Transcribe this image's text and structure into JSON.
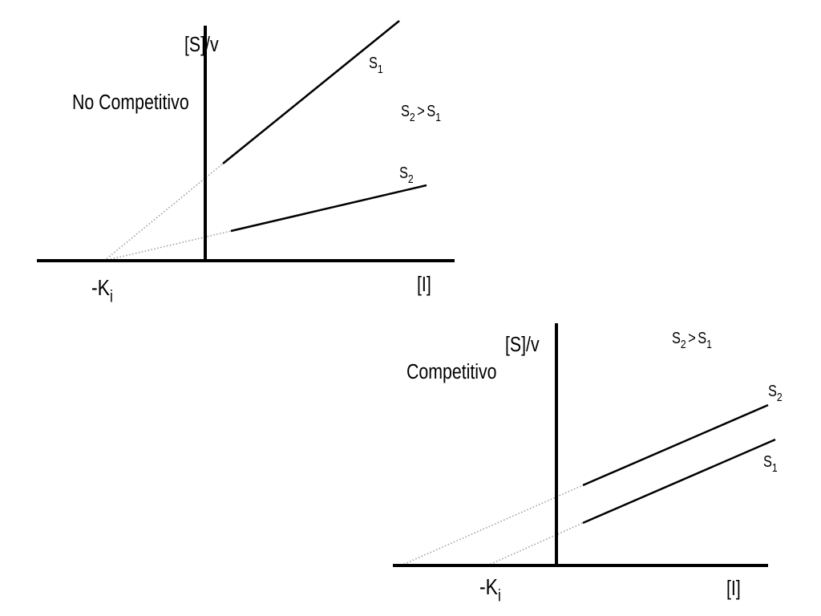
{
  "diagrams": [
    {
      "title": "No Competitivo",
      "y_axis_label": "[S]/v",
      "x_axis_label": "[I]",
      "intercept_label": {
        "base": "-K",
        "sub": "i"
      },
      "relation": {
        "left": {
          "base": "S",
          "sub": "2"
        },
        "op": ">",
        "right": {
          "base": "S",
          "sub": "1"
        }
      },
      "lines": [
        {
          "base": "S",
          "sub": "1"
        },
        {
          "base": "S",
          "sub": "2"
        }
      ]
    },
    {
      "title": "Competitivo",
      "y_axis_label": "[S]/v",
      "x_axis_label": "[I]",
      "intercept_label": {
        "base": "-K",
        "sub": "i"
      },
      "relation": {
        "left": {
          "base": "S",
          "sub": "2"
        },
        "op": ">",
        "right": {
          "base": "S",
          "sub": "1"
        }
      },
      "lines": [
        {
          "base": "S",
          "sub": "2"
        },
        {
          "base": "S",
          "sub": "1"
        }
      ]
    }
  ]
}
